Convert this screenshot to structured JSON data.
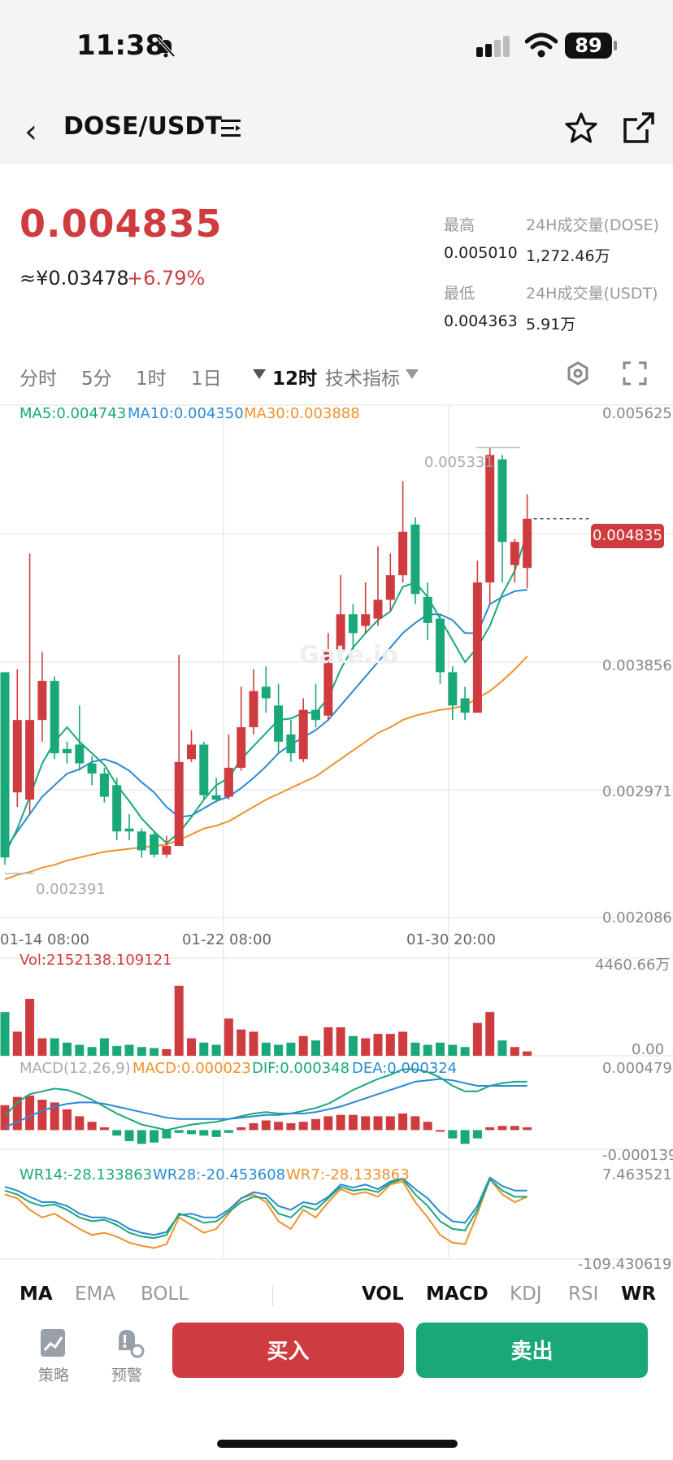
{
  "status_bar": {
    "time": "11:38",
    "battery": "89"
  },
  "header": {
    "pair": "DOSE/USDT"
  },
  "ticker": {
    "price": "0.004835",
    "cny": "≈¥0.03478",
    "change": "+6.79%",
    "high_label": "最高",
    "high_value": "0.005010",
    "low_label": "最低",
    "low_value": "0.004363",
    "vol_dose_label": "24H成交量(DOSE)",
    "vol_dose_value": "1,272.46万",
    "vol_usdt_label": "24H成交量(USDT)",
    "vol_usdt_value": "5.91万"
  },
  "intervals": [
    "分时",
    "5分",
    "1时",
    "1日",
    "12时"
  ],
  "indicators_label": "技术指标",
  "ma_legend": {
    "ma5": "MA5:0.004743",
    "ma10": "MA10:0.004350",
    "ma30": "MA30:0.003888"
  },
  "price_axis": [
    "0.005625",
    "0.003856",
    "0.002971",
    "0.002086"
  ],
  "time_axis": [
    "01-14 08:00",
    "01-22 08:00",
    "01-30 20:00"
  ],
  "annotations": {
    "high_marker": "0.005331",
    "low_marker": "0.002391",
    "last_price_tag": "0.004835",
    "watermark": "Gate.io"
  },
  "volume": {
    "label": "Vol:2152138.109121",
    "max": "4460.66万",
    "min": "0.00"
  },
  "macd": {
    "label": "MACD(12,26,9)",
    "macd": "MACD:0.000023",
    "dif": "DIF:0.000348",
    "dea": "DEA:0.000324",
    "max": "0.000479",
    "min": "-0.000139"
  },
  "wr": {
    "wr14": "WR14:-28.133863",
    "wr28": "WR28:-20.453608",
    "wr7": "WR7:-28.133863",
    "max": "7.463521",
    "min": "-109.430619"
  },
  "main_indicators": [
    "MA",
    "EMA",
    "BOLL"
  ],
  "sub_indicators": [
    "VOL",
    "MACD",
    "KDJ",
    "RSI",
    "WR"
  ],
  "bottom": {
    "strategy": "策略",
    "alert": "预警",
    "buy": "买入",
    "sell": "卖出"
  },
  "colors": {
    "up": "#cf3c3f",
    "down": "#1aa87a",
    "ma5": "#1aa87a",
    "ma10": "#2a8ad4",
    "ma30": "#f0922b"
  },
  "chart_data": {
    "type": "candlestick",
    "ylim": [
      0.002086,
      0.005625
    ],
    "candles": [
      {
        "o": 0.00378,
        "h": 0.00378,
        "c": 0.0025,
        "l": 0.00245
      },
      {
        "o": 0.00295,
        "h": 0.0038,
        "c": 0.00345,
        "l": 0.00285
      },
      {
        "o": 0.0029,
        "h": 0.0046,
        "c": 0.00345,
        "l": 0.0028
      },
      {
        "o": 0.00345,
        "h": 0.00392,
        "c": 0.00372,
        "l": 0.0033
      },
      {
        "o": 0.00372,
        "h": 0.00375,
        "c": 0.00322,
        "l": 0.00318
      },
      {
        "o": 0.00325,
        "h": 0.0033,
        "c": 0.00322,
        "l": 0.00315
      },
      {
        "o": 0.00328,
        "h": 0.00355,
        "c": 0.00315,
        "l": 0.0031
      },
      {
        "o": 0.00315,
        "h": 0.0032,
        "c": 0.00308,
        "l": 0.003
      },
      {
        "o": 0.00308,
        "h": 0.00312,
        "c": 0.00292,
        "l": 0.00288
      },
      {
        "o": 0.003,
        "h": 0.00305,
        "c": 0.00268,
        "l": 0.00262
      },
      {
        "o": 0.0027,
        "h": 0.0028,
        "c": 0.00268,
        "l": 0.00262
      },
      {
        "o": 0.00268,
        "h": 0.0027,
        "c": 0.00255,
        "l": 0.0025
      },
      {
        "o": 0.00266,
        "h": 0.00268,
        "c": 0.00252,
        "l": 0.0025
      },
      {
        "o": 0.00252,
        "h": 0.00265,
        "c": 0.00258,
        "l": 0.0025
      },
      {
        "o": 0.00258,
        "h": 0.0039,
        "c": 0.00316,
        "l": 0.00258
      },
      {
        "o": 0.00318,
        "h": 0.00338,
        "c": 0.00328,
        "l": 0.00316
      },
      {
        "o": 0.00328,
        "h": 0.0033,
        "c": 0.00293,
        "l": 0.0029
      },
      {
        "o": 0.00293,
        "h": 0.00305,
        "c": 0.0029,
        "l": 0.00288
      },
      {
        "o": 0.00292,
        "h": 0.00335,
        "c": 0.00312,
        "l": 0.0029
      },
      {
        "o": 0.00312,
        "h": 0.00368,
        "c": 0.0034,
        "l": 0.0031
      },
      {
        "o": 0.0034,
        "h": 0.0038,
        "c": 0.00365,
        "l": 0.00335
      },
      {
        "o": 0.00368,
        "h": 0.00382,
        "c": 0.0036,
        "l": 0.0035
      },
      {
        "o": 0.00355,
        "h": 0.0037,
        "c": 0.0033,
        "l": 0.00322
      },
      {
        "o": 0.00335,
        "h": 0.00345,
        "c": 0.00322,
        "l": 0.00316
      },
      {
        "o": 0.00318,
        "h": 0.0036,
        "c": 0.00352,
        "l": 0.00316
      },
      {
        "o": 0.00352,
        "h": 0.0037,
        "c": 0.00345,
        "l": 0.0034
      },
      {
        "o": 0.00348,
        "h": 0.00405,
        "c": 0.00392,
        "l": 0.00345
      },
      {
        "o": 0.00392,
        "h": 0.00445,
        "c": 0.00418,
        "l": 0.00385
      },
      {
        "o": 0.00418,
        "h": 0.00425,
        "c": 0.00405,
        "l": 0.00392
      },
      {
        "o": 0.0041,
        "h": 0.0044,
        "c": 0.00418,
        "l": 0.00405
      },
      {
        "o": 0.00415,
        "h": 0.00465,
        "c": 0.00428,
        "l": 0.0041
      },
      {
        "o": 0.00428,
        "h": 0.0046,
        "c": 0.00445,
        "l": 0.0042
      },
      {
        "o": 0.00445,
        "h": 0.0051,
        "c": 0.00475,
        "l": 0.0044
      },
      {
        "o": 0.0048,
        "h": 0.00485,
        "c": 0.00432,
        "l": 0.00425
      },
      {
        "o": 0.0043,
        "h": 0.0044,
        "c": 0.00412,
        "l": 0.004
      },
      {
        "o": 0.00415,
        "h": 0.00418,
        "c": 0.00378,
        "l": 0.0037
      },
      {
        "o": 0.00378,
        "h": 0.00382,
        "c": 0.00355,
        "l": 0.00345
      },
      {
        "o": 0.0036,
        "h": 0.00368,
        "c": 0.0035,
        "l": 0.00345
      },
      {
        "o": 0.0035,
        "h": 0.00455,
        "c": 0.0044,
        "l": 0.0035
      },
      {
        "o": 0.0044,
        "h": 0.00533,
        "c": 0.00528,
        "l": 0.00425
      },
      {
        "o": 0.00525,
        "h": 0.00528,
        "c": 0.00468,
        "l": 0.0044
      },
      {
        "o": 0.00452,
        "h": 0.0047,
        "c": 0.00468,
        "l": 0.0044
      },
      {
        "o": 0.0045,
        "h": 0.00501,
        "c": 0.00484,
        "l": 0.00436
      }
    ],
    "ma5": [
      0.00252,
      0.0027,
      0.00292,
      0.00315,
      0.0033,
      0.0034,
      0.0033,
      0.00322,
      0.00314,
      0.003,
      0.00289,
      0.00277,
      0.00268,
      0.0026,
      0.00267,
      0.00278,
      0.0029,
      0.003,
      0.00305,
      0.00318,
      0.00327,
      0.00336,
      0.00345,
      0.00346,
      0.0035,
      0.0035,
      0.0036,
      0.0038,
      0.00395,
      0.00405,
      0.00414,
      0.0042,
      0.00437,
      0.0044,
      0.0043,
      0.00415,
      0.004,
      0.00385,
      0.00395,
      0.0041,
      0.00432,
      0.00448,
      0.00474
    ],
    "ma10": [
      0.00255,
      0.00268,
      0.0028,
      0.00292,
      0.003,
      0.00308,
      0.00311,
      0.00316,
      0.00318,
      0.00315,
      0.0031,
      0.00302,
      0.00295,
      0.00285,
      0.00278,
      0.00279,
      0.00284,
      0.00289,
      0.00292,
      0.00298,
      0.00305,
      0.00313,
      0.00322,
      0.00328,
      0.00333,
      0.00338,
      0.00345,
      0.00355,
      0.00365,
      0.00375,
      0.00385,
      0.00395,
      0.00405,
      0.00412,
      0.00418,
      0.00418,
      0.00414,
      0.00405,
      0.00405,
      0.00425,
      0.0043,
      0.00434,
      0.00435
    ],
    "ma30": [
      0.00235,
      0.00238,
      0.0024,
      0.00243,
      0.00245,
      0.00248,
      0.0025,
      0.00252,
      0.00254,
      0.00255,
      0.00256,
      0.00257,
      0.00258,
      0.00259,
      0.00262,
      0.00266,
      0.0027,
      0.00272,
      0.00275,
      0.0028,
      0.00285,
      0.0029,
      0.00294,
      0.00298,
      0.00302,
      0.00306,
      0.00312,
      0.00318,
      0.00324,
      0.0033,
      0.00336,
      0.0034,
      0.00345,
      0.00348,
      0.0035,
      0.00352,
      0.00353,
      0.00355,
      0.0036,
      0.00365,
      0.00372,
      0.0038,
      0.00389
    ],
    "volume": [
      2000,
      1100,
      2600,
      800,
      800,
      600,
      500,
      400,
      800,
      450,
      500,
      400,
      350,
      300,
      3200,
      800,
      600,
      500,
      1700,
      1200,
      1100,
      600,
      500,
      600,
      900,
      700,
      1300,
      1300,
      900,
      800,
      1000,
      1000,
      1100,
      600,
      500,
      600,
      500,
      400,
      1500,
      2000,
      700,
      400,
      200
    ],
    "macd_hist": [
      0.00018,
      0.00024,
      0.00025,
      0.00022,
      0.0002,
      0.00015,
      0.0001,
      6e-05,
      2e-05,
      -4e-05,
      -8e-05,
      -0.0001,
      -9e-05,
      -6e-05,
      -2e-05,
      -3e-05,
      -4e-05,
      -5e-05,
      -2e-05,
      2e-05,
      5e-05,
      7e-05,
      6e-05,
      5e-05,
      6e-05,
      8e-05,
      0.0001,
      0.00011,
      0.00011,
      0.0001,
      0.0001,
      0.0001,
      0.00012,
      0.0001,
      6e-05,
      0.0,
      -6e-05,
      -0.0001,
      -6e-05,
      2e-05,
      3e-05,
      3e-05,
      2e-05
    ],
    "macd_dif": [
      0.0001,
      0.0002,
      0.00026,
      0.00028,
      0.0003,
      0.00029,
      0.00026,
      0.00022,
      0.00017,
      0.00012,
      8e-05,
      4e-05,
      2e-05,
      0.0,
      2e-05,
      4e-05,
      5e-05,
      6e-05,
      8e-05,
      0.0001,
      0.00012,
      0.00013,
      0.00012,
      0.00012,
      0.00014,
      0.00016,
      0.00019,
      0.00024,
      0.00029,
      0.00033,
      0.00037,
      0.0004,
      0.00044,
      0.00044,
      0.00042,
      0.00038,
      0.00032,
      0.00028,
      0.00028,
      0.00032,
      0.00034,
      0.00035,
      0.00035
    ],
    "macd_dea": [
      2e-05,
      6e-05,
      0.0001,
      0.00014,
      0.00017,
      0.00019,
      0.0002,
      0.0002,
      0.00019,
      0.00017,
      0.00015,
      0.00013,
      0.00011,
      9e-05,
      8e-05,
      8e-05,
      8e-05,
      8e-05,
      8e-05,
      9e-05,
      0.0001,
      0.00011,
      0.00011,
      0.00012,
      0.00012,
      0.00013,
      0.00015,
      0.00017,
      0.0002,
      0.00023,
      0.00026,
      0.00029,
      0.00032,
      0.00035,
      0.00036,
      0.00037,
      0.00036,
      0.00034,
      0.00032,
      0.00032,
      0.00032,
      0.00032,
      0.00032
    ],
    "wr14": [
      -20,
      -25,
      -35,
      -40,
      -38,
      -45,
      -55,
      -60,
      -58,
      -65,
      -75,
      -80,
      -82,
      -78,
      -50,
      -55,
      -62,
      -60,
      -48,
      -35,
      -28,
      -30,
      -50,
      -55,
      -40,
      -45,
      -30,
      -15,
      -20,
      -18,
      -22,
      -10,
      -5,
      -25,
      -40,
      -60,
      -70,
      -72,
      -45,
      -5,
      -20,
      -28,
      -28
    ],
    "wr28": [
      -15,
      -20,
      -28,
      -35,
      -35,
      -40,
      -50,
      -55,
      -55,
      -60,
      -70,
      -75,
      -78,
      -74,
      -52,
      -50,
      -55,
      -55,
      -45,
      -30,
      -22,
      -25,
      -40,
      -45,
      -35,
      -38,
      -28,
      -12,
      -16,
      -12,
      -18,
      -8,
      -4,
      -18,
      -30,
      -48,
      -60,
      -62,
      -40,
      -3,
      -14,
      -20,
      -20
    ],
    "wr7": [
      -25,
      -30,
      -45,
      -55,
      -50,
      -60,
      -70,
      -78,
      -75,
      -80,
      -88,
      -92,
      -95,
      -90,
      -55,
      -65,
      -75,
      -70,
      -50,
      -30,
      -25,
      -35,
      -60,
      -70,
      -45,
      -55,
      -35,
      -18,
      -25,
      -22,
      -28,
      -12,
      -8,
      -35,
      -55,
      -78,
      -88,
      -90,
      -50,
      -5,
      -25,
      -35,
      -28
    ]
  }
}
